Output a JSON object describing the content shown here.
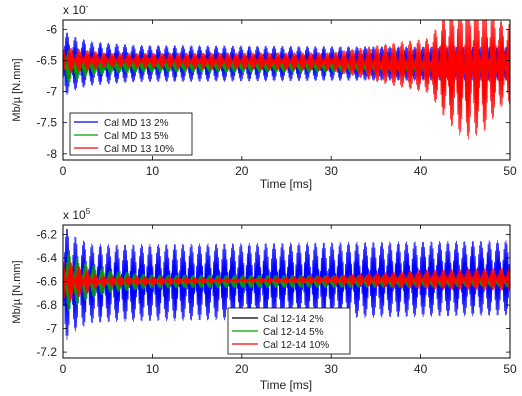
{
  "chart_data": [
    {
      "type": "line",
      "xlabel": "Time [ms]",
      "ylabel": "Mb/µ [N.mm]",
      "exponent_label": "x 10",
      "exponent_value": "-",
      "xlim": [
        0,
        50
      ],
      "ylim": [
        -8.1,
        -5.85
      ],
      "xticks": [
        0,
        10,
        20,
        30,
        40,
        50
      ],
      "yticks": [
        -8,
        -7.5,
        -7,
        -6.5,
        -6
      ],
      "grid": false,
      "legend": "bottom-left",
      "series": [
        {
          "name": "Cal MD 13 2%",
          "color": "#0000ff",
          "center": [
            [
              0,
              -6.55
            ],
            [
              10,
              -6.55
            ],
            [
              50,
              -6.55
            ]
          ],
          "amplitude": [
            [
              0,
              0.55
            ],
            [
              1,
              0.45
            ],
            [
              3,
              0.36
            ],
            [
              8,
              0.3
            ],
            [
              30,
              0.28
            ],
            [
              50,
              0.27
            ]
          ]
        },
        {
          "name": "Cal MD 13 5%",
          "color": "#00a000",
          "center": [
            [
              0,
              -6.6
            ],
            [
              10,
              -6.58
            ],
            [
              50,
              -6.6
            ]
          ],
          "amplitude": [
            [
              0,
              0.35
            ],
            [
              1,
              0.25
            ],
            [
              3,
              0.15
            ],
            [
              8,
              0.12
            ],
            [
              30,
              0.11
            ],
            [
              50,
              0.12
            ]
          ]
        },
        {
          "name": "Cal MD 13 10%",
          "color": "#ff0000",
          "center": [
            [
              0,
              -6.5
            ],
            [
              5,
              -6.5
            ],
            [
              30,
              -6.52
            ],
            [
              40,
              -6.58
            ],
            [
              44,
              -6.6
            ],
            [
              50,
              -6.55
            ]
          ],
          "amplitude": [
            [
              0,
              0.22
            ],
            [
              5,
              0.12
            ],
            [
              30,
              0.15
            ],
            [
              37,
              0.35
            ],
            [
              41,
              0.45
            ],
            [
              43,
              0.9
            ],
            [
              45,
              1.2
            ],
            [
              47,
              1.1
            ],
            [
              49,
              0.7
            ],
            [
              50,
              0.65
            ]
          ]
        }
      ]
    },
    {
      "type": "line",
      "xlabel": "Time [ms]",
      "ylabel": "Mb/µ [N.mm]",
      "exponent_label": "x 10",
      "exponent_value": "5",
      "xlim": [
        0,
        50
      ],
      "ylim": [
        -7.25,
        -6.12
      ],
      "xticks": [
        0,
        10,
        20,
        30,
        40,
        50
      ],
      "yticks": [
        -7.2,
        -7,
        -6.8,
        -6.6,
        -6.4,
        -6.2
      ],
      "grid": false,
      "legend": "bottom-center",
      "series": [
        {
          "name": "Cal 12-14 2%",
          "color": "#0000ff",
          "center": [
            [
              0,
              -6.62
            ],
            [
              50,
              -6.57
            ]
          ],
          "amplitude": [
            [
              0,
              0.52
            ],
            [
              1,
              0.42
            ],
            [
              3,
              0.34
            ],
            [
              6,
              0.33
            ],
            [
              50,
              0.32
            ]
          ]
        },
        {
          "name": "Cal 12-14 5%",
          "color": "#00a000",
          "center": [
            [
              0,
              -6.6
            ],
            [
              50,
              -6.6
            ]
          ],
          "amplitude": [
            [
              0,
              0.3
            ],
            [
              2,
              0.18
            ],
            [
              5,
              0.1
            ],
            [
              10,
              0.06
            ],
            [
              50,
              0.05
            ]
          ]
        },
        {
          "name": "Cal 12-14 10%",
          "color": "#ff0000",
          "center": [
            [
              0,
              -6.6
            ],
            [
              50,
              -6.58
            ]
          ],
          "amplitude": [
            [
              0,
              0.2
            ],
            [
              4,
              0.05
            ],
            [
              20,
              0.02
            ],
            [
              30,
              0.04
            ],
            [
              40,
              0.08
            ],
            [
              50,
              0.1
            ]
          ]
        }
      ]
    }
  ]
}
